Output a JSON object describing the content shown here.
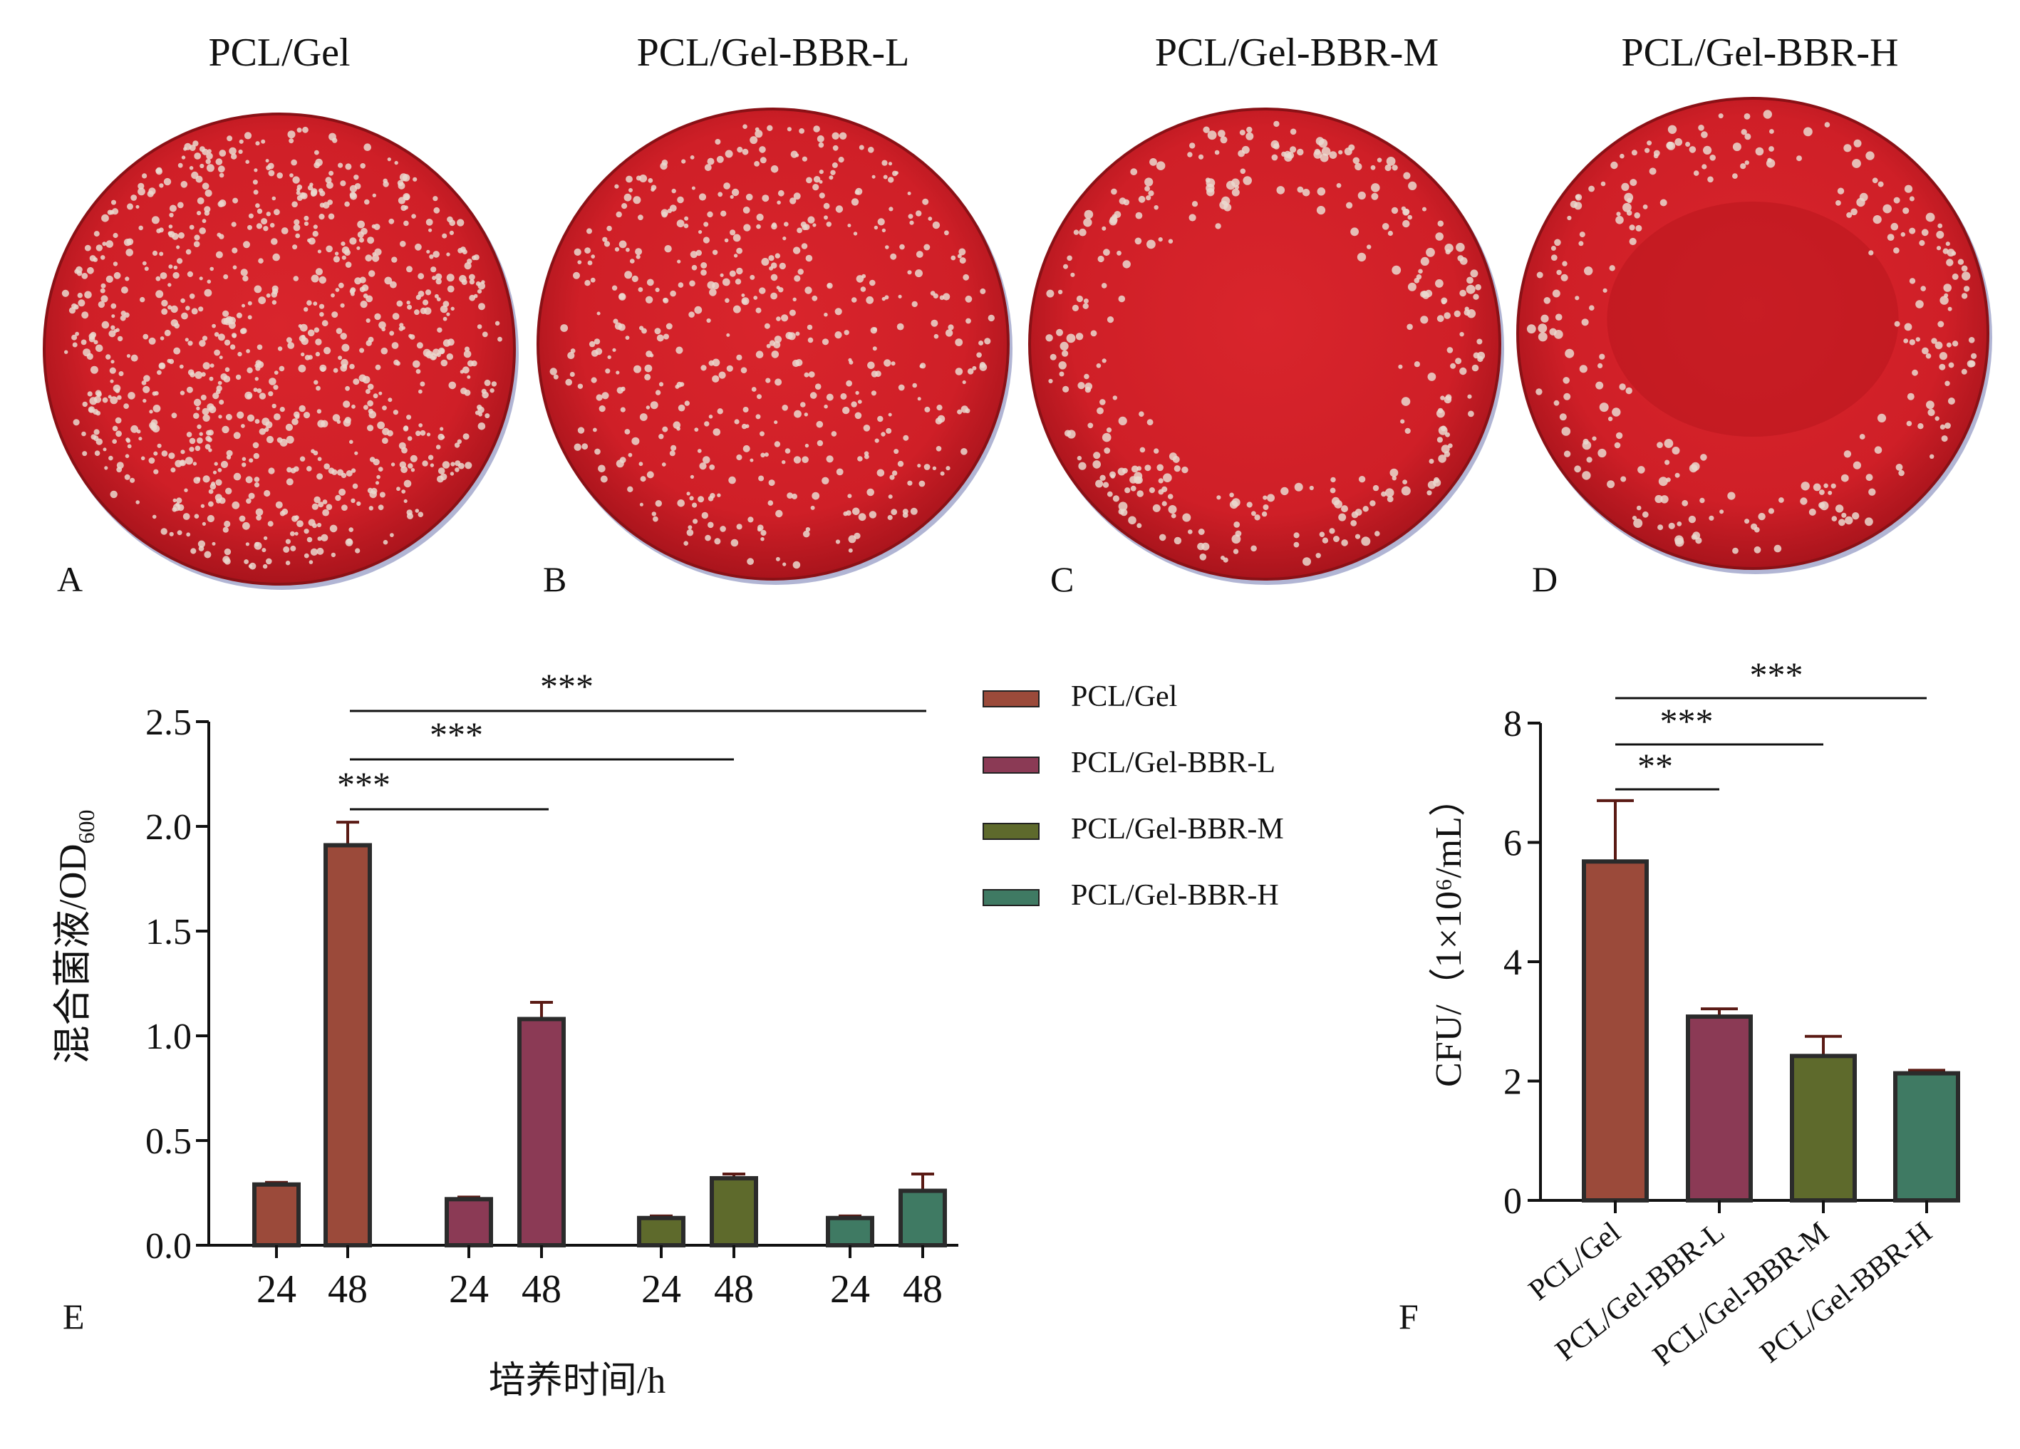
{
  "plates": [
    {
      "title": "PCL/Gel",
      "letter": "A",
      "colony_level": "dense"
    },
    {
      "title": "PCL/Gel-BBR-L",
      "letter": "B",
      "colony_level": "moderate"
    },
    {
      "title": "PCL/Gel-BBR-M",
      "letter": "C",
      "colony_level": "sparse"
    },
    {
      "title": "PCL/Gel-BBR-H",
      "letter": "D",
      "colony_level": "very sparse"
    }
  ],
  "colors": {
    "agar": "#d6232a",
    "agar_dark": "#b0161d",
    "colony": "#ead9cf",
    "PCL/Gel": "#9b4a3a",
    "PCL/Gel-BBR-L": "#8b3a55",
    "PCL/Gel-BBR-M": "#5e6a2c",
    "PCL/Gel-BBR-H": "#3f7a63"
  },
  "legend": [
    "PCL/Gel",
    "PCL/Gel-BBR-L",
    "PCL/Gel-BBR-M",
    "PCL/Gel-BBR-H"
  ],
  "chart_data": [
    {
      "type": "bar",
      "panel": "E",
      "xlabel": "培养时间/h",
      "ylabel_main": "混合菌液/OD",
      "ylabel_sub": "600",
      "ylim": [
        0,
        2.5
      ],
      "yticks": [
        "0.0",
        "0.5",
        "1.0",
        "1.5",
        "2.0",
        "2.5"
      ],
      "grid": false,
      "legend_position": "right",
      "series": [
        {
          "name": "PCL/Gel",
          "x": [
            "24",
            "48"
          ],
          "values": [
            0.29,
            1.91
          ],
          "errors": [
            0.01,
            0.11
          ]
        },
        {
          "name": "PCL/Gel-BBR-L",
          "x": [
            "24",
            "48"
          ],
          "values": [
            0.22,
            1.08
          ],
          "errors": [
            0.01,
            0.08
          ]
        },
        {
          "name": "PCL/Gel-BBR-M",
          "x": [
            "24",
            "48"
          ],
          "values": [
            0.13,
            0.32
          ],
          "errors": [
            0.01,
            0.02
          ]
        },
        {
          "name": "PCL/Gel-BBR-H",
          "x": [
            "24",
            "48"
          ],
          "values": [
            0.13,
            0.26
          ],
          "errors": [
            0.01,
            0.08
          ]
        }
      ],
      "significance": [
        {
          "from": "PCL/Gel 48",
          "to": "PCL/Gel-BBR-L 48",
          "label": "***"
        },
        {
          "from": "PCL/Gel 48",
          "to": "PCL/Gel-BBR-M 48",
          "label": "***"
        },
        {
          "from": "PCL/Gel 48",
          "to": "PCL/Gel-BBR-H 48",
          "label": "***"
        }
      ]
    },
    {
      "type": "bar",
      "panel": "F",
      "ylabel": "CFU/（1×10⁶/mL）",
      "ylim": [
        0,
        8
      ],
      "yticks": [
        "0",
        "2",
        "4",
        "6",
        "8"
      ],
      "grid": false,
      "categories": [
        "PCL/Gel",
        "PCL/Gel-BBR-L",
        "PCL/Gel-BBR-M",
        "PCL/Gel-BBR-H"
      ],
      "values": [
        5.68,
        3.08,
        2.42,
        2.13
      ],
      "errors": [
        1.02,
        0.13,
        0.33,
        0.05
      ],
      "significance": [
        {
          "from": "PCL/Gel",
          "to": "PCL/Gel-BBR-L",
          "label": "**"
        },
        {
          "from": "PCL/Gel",
          "to": "PCL/Gel-BBR-M",
          "label": "***"
        },
        {
          "from": "PCL/Gel",
          "to": "PCL/Gel-BBR-H",
          "label": "***"
        }
      ]
    }
  ]
}
